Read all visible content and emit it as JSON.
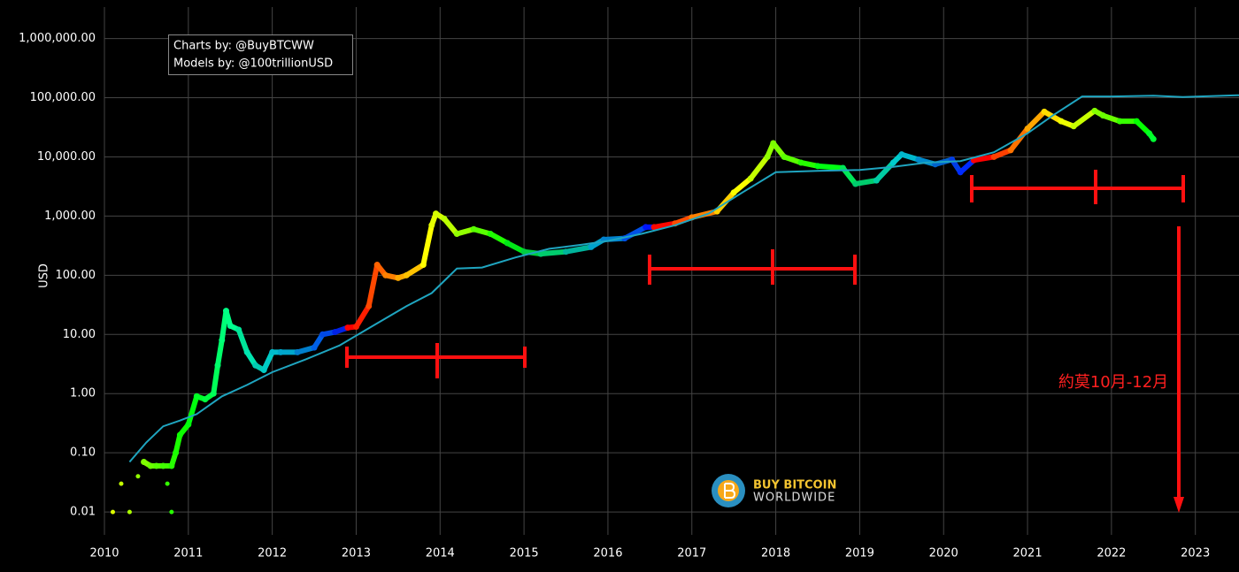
{
  "chart_data": {
    "type": "scatter",
    "log_y": true,
    "grid": true,
    "y_label": "USD",
    "credits": [
      "Charts by: @BuyBTCWW",
      "Models by: @100trillionUSD"
    ],
    "annotation": "約莫10月-12月",
    "watermark": [
      "BUY BITCOIN",
      "WORLDWIDE"
    ],
    "xlim": [
      2010,
      2023.52
    ],
    "xticks": [
      2010,
      2011,
      2012,
      2013,
      2014,
      2015,
      2016,
      2017,
      2018,
      2019,
      2020,
      2021,
      2022,
      2023
    ],
    "ylim": [
      0.0041,
      3400000
    ],
    "yticks": [
      {
        "value": 0.01,
        "label": "0.01"
      },
      {
        "value": 0.1,
        "label": "0.10"
      },
      {
        "value": 1,
        "label": "1.00"
      },
      {
        "value": 10,
        "label": "10.00"
      },
      {
        "value": 100,
        "label": "100.00"
      },
      {
        "value": 1000,
        "label": "1,000.00"
      },
      {
        "value": 10000,
        "label": "10,000.00"
      },
      {
        "value": 100000,
        "label": "100,000.00"
      },
      {
        "value": 1000000,
        "label": "1,000,000.00"
      }
    ],
    "series": [
      {
        "mode": "markers",
        "x": [
          2010.1,
          2010.2,
          2010.3,
          2010.4,
          2010.75,
          2010.8
        ],
        "values": [
          0.01,
          0.03,
          0.01,
          0.04,
          0.03,
          0.01
        ],
        "colors": [
          "hsl(68,100%,50%)",
          "hsl(74,100%,50%)",
          "hsl(80,100%,50%)",
          "hsl(86,100%,50%)",
          "hsl(108,100%,50%)",
          "hsl(111,100%,50%)"
        ]
      },
      {
        "mode": "lines",
        "x": [
          2010.47,
          2010.55,
          2010.62,
          2010.7,
          2010.8,
          2010.85,
          2010.9,
          2011.0,
          2011.1,
          2011.2,
          2011.3,
          2011.35,
          2011.4,
          2011.45,
          2011.5,
          2011.6,
          2011.7,
          2011.8,
          2011.9,
          2012.0,
          2012.1,
          2012.3,
          2012.5,
          2012.6,
          2012.75,
          2012.9,
          2013.0,
          2013.15,
          2013.25,
          2013.35,
          2013.5,
          2013.6,
          2013.8,
          2013.9,
          2013.95,
          2014.05,
          2014.2,
          2014.4,
          2014.6,
          2014.8,
          2015.0,
          2015.2,
          2015.5,
          2015.8,
          2015.95,
          2016.2,
          2016.45,
          2016.55,
          2016.8,
          2017.0,
          2017.3,
          2017.5,
          2017.7,
          2017.9,
          2017.97,
          2018.1,
          2018.3,
          2018.5,
          2018.8,
          2018.95,
          2019.2,
          2019.4,
          2019.5,
          2019.7,
          2019.9,
          2020.1,
          2020.2,
          2020.36,
          2020.6,
          2020.8,
          2021.0,
          2021.2,
          2021.4,
          2021.55,
          2021.8,
          2021.9,
          2022.1,
          2022.3,
          2022.45,
          2022.5
        ],
        "values": [
          0.07,
          0.06,
          0.06,
          0.06,
          0.06,
          0.1,
          0.2,
          0.3,
          0.9,
          0.8,
          1.0,
          3,
          8,
          25,
          14,
          12,
          5,
          3,
          2.5,
          5,
          5,
          5,
          6,
          10,
          11,
          13,
          13.5,
          30,
          150,
          100,
          90,
          100,
          150,
          700,
          1100,
          900,
          500,
          600,
          500,
          350,
          250,
          230,
          250,
          300,
          400,
          420,
          650,
          650,
          750,
          950,
          1200,
          2500,
          4300,
          10000,
          17000,
          10000,
          8000,
          7000,
          6500,
          3500,
          4000,
          8000,
          11000,
          9000,
          7500,
          9000,
          5500,
          8800,
          10000,
          13000,
          30000,
          58000,
          40000,
          33000,
          60000,
          50000,
          40000,
          40000,
          25000,
          20000
        ],
        "colors": [
          "hsl(90,100%,50%)",
          "hsl(95,100%,50%)",
          "hsl(100,100%,50%)",
          "hsl(105,100%,50%)",
          "hsl(111,100%,50%)",
          "hsl(114,100%,50%)",
          "hsl(117,100%,50%)",
          "hsl(123,100%,50%)",
          "hsl(129,100%,50%)",
          "hsl(135,100%,50%)",
          "hsl(141,100%,50%)",
          "hsl(145,100%,50%)",
          "hsl(148,100%,50%)",
          "hsl(151,100%,50%)",
          "hsl(154,100%,50%)",
          "hsl(160,100%,45%)",
          "hsl(166,100%,45%)",
          "hsl(172,100%,40%)",
          "hsl(178,100%,40%)",
          "hsl(185,100%,40%)",
          "hsl(191,100%,40%)",
          "hsl(203,100%,40%)",
          "hsl(215,100%,45%)",
          "hsl(221,100%,45%)",
          "hsl(231,100%,45%)",
          "hsl(0,100%,50%)",
          "hsl(7,100%,50%)",
          "hsl(17,100%,50%)",
          "hsl(23,100%,50%)",
          "hsl(30,100%,50%)",
          "hsl(40,100%,50%)",
          "hsl(46,100%,50%)",
          "hsl(60,100%,50%)",
          "hsl(66,100%,50%)",
          "hsl(70,100%,50%)",
          "hsl(76,100%,50%)",
          "hsl(86,100%,50%)",
          "hsl(99,100%,50%)",
          "hsl(113,100%,50%)",
          "hsl(126,100%,45%)",
          "hsl(139,100%,40%)",
          "hsl(152,100%,40%)",
          "hsl(172,100%,35%)",
          "hsl(192,100%,40%)",
          "hsl(202,100%,40%)",
          "hsl(219,100%,45%)",
          "hsl(235,100%,50%)",
          "hsl(2,100%,50%)",
          "hsl(18,100%,50%)",
          "hsl(30,100%,50%)",
          "hsl(49,100%,50%)",
          "hsl(61,100%,50%)",
          "hsl(74,100%,50%)",
          "hsl(86,100%,50%)",
          "hsl(91,100%,50%)",
          "hsl(99,100%,50%)",
          "hsl(111,100%,50%)",
          "hsl(124,100%,50%)",
          "hsl(143,100%,45%)",
          "hsl(152,100%,40%)",
          "hsl(168,100%,40%)",
          "hsl(180,100%,40%)",
          "hsl(186,100%,40%)",
          "hsl(199,100%,40%)",
          "hsl(211,100%,40%)",
          "hsl(224,100%,45%)",
          "hsl(230,100%,50%)",
          "hsl(0,100%,50%)",
          "hsl(15,100%,50%)",
          "hsl(27,100%,50%)",
          "hsl(39,100%,50%)",
          "hsl(52,100%,50%)",
          "hsl(64,100%,50%)",
          "hsl(73,100%,50%)",
          "hsl(89,100%,50%)",
          "hsl(95,100%,50%)",
          "hsl(107,100%,50%)",
          "hsl(119,100%,50%)",
          "hsl(129,100%,50%)",
          "hsl(132,100%,50%)"
        ]
      },
      {
        "mode": "model",
        "color": "#1fa5c0",
        "x": [
          2010.3,
          2010.5,
          2010.7,
          2010.9,
          2011.1,
          2011.4,
          2011.7,
          2012.0,
          2012.4,
          2012.8,
          2013.2,
          2013.6,
          2013.9,
          2014.2,
          2014.5,
          2014.9,
          2015.3,
          2015.7,
          2016.0,
          2016.4,
          2016.8,
          2017.2,
          2017.6,
          2018.0,
          2018.5,
          2019.0,
          2019.4,
          2019.8,
          2020.2,
          2020.6,
          2021.0,
          2021.3,
          2021.65,
          2022.0,
          2022.5,
          2022.85,
          2023.52
        ],
        "values": [
          0.07,
          0.15,
          0.28,
          0.35,
          0.45,
          0.9,
          1.4,
          2.3,
          3.8,
          6.5,
          14,
          30,
          50,
          130,
          135,
          200,
          280,
          330,
          380,
          500,
          700,
          1100,
          2500,
          5500,
          5800,
          6000,
          6800,
          8000,
          8500,
          12000,
          25000,
          50000,
          105000,
          105000,
          108000,
          103000,
          110000
        ]
      }
    ]
  }
}
